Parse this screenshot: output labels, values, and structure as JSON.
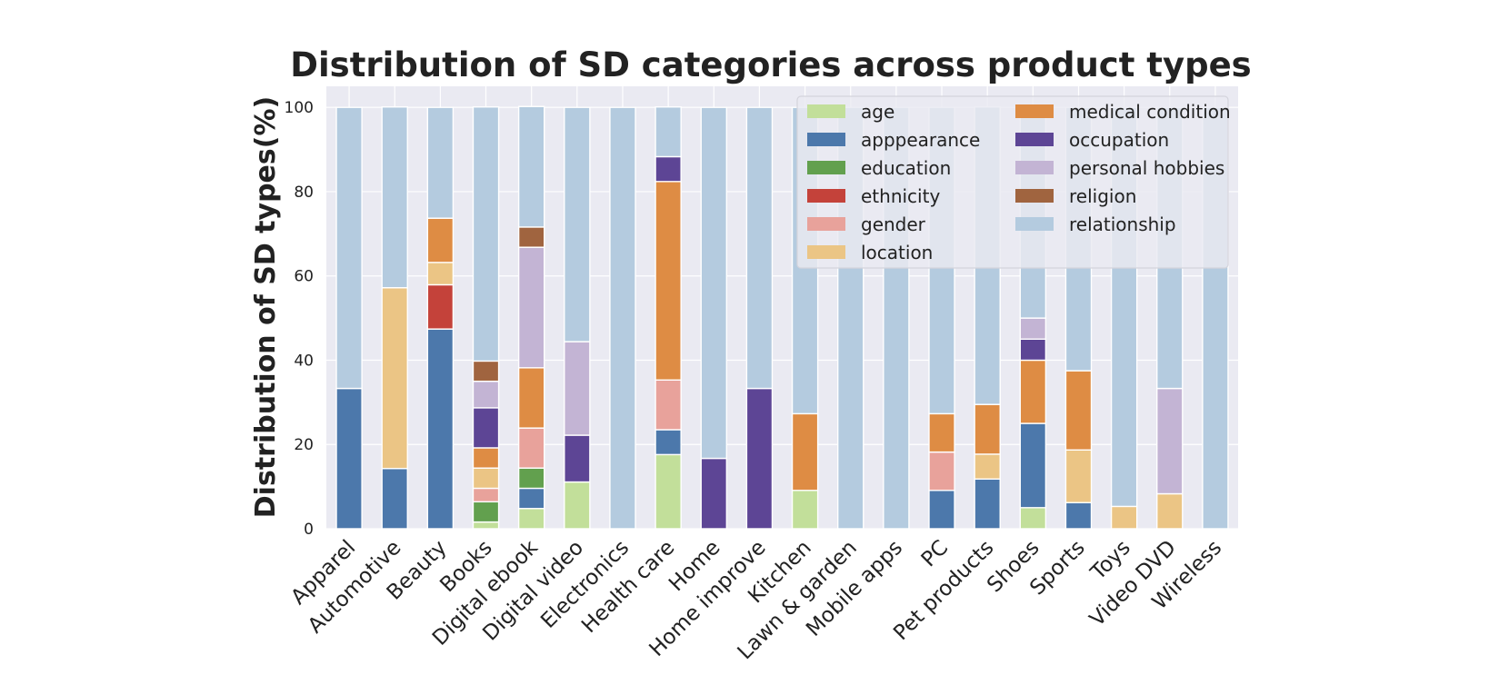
{
  "chart_data": {
    "type": "bar",
    "stacked": true,
    "title": "Distribution of SD categories across product types",
    "xlabel": "",
    "ylabel": "Distribution of SD types(%)",
    "ylim": [
      0,
      105
    ],
    "yticks": [
      0,
      20,
      40,
      60,
      80,
      100
    ],
    "grid": true,
    "legend_position": "top-right",
    "categories": [
      "Apparel",
      "Automotive",
      "Beauty",
      "Books",
      "Digital ebook",
      "Digital video",
      "Electronics",
      "Health care",
      "Home",
      "Home improve",
      "Kitchen",
      "Lawn & garden",
      "Mobile apps",
      "PC",
      "Pet products",
      "Shoes",
      "Sports",
      "Toys",
      "Video DVD",
      "Wireless"
    ],
    "series": [
      {
        "name": "age",
        "color": "#c2df9a",
        "values": [
          0,
          0,
          0,
          1.6,
          4.8,
          11.1,
          0,
          17.6,
          0,
          0,
          9.1,
          0,
          0,
          0,
          0,
          5.0,
          0,
          0,
          0,
          0
        ]
      },
      {
        "name": "apppearance",
        "color": "#4c78ab",
        "values": [
          33.3,
          14.3,
          47.4,
          0,
          4.8,
          0,
          0,
          5.9,
          0,
          0,
          0,
          0,
          0,
          9.1,
          11.8,
          20.0,
          6.2,
          0,
          0,
          0
        ]
      },
      {
        "name": "education",
        "color": "#62a04e",
        "values": [
          0,
          0,
          0,
          4.8,
          4.8,
          0,
          0,
          0,
          0,
          0,
          0,
          0,
          0,
          0,
          0,
          0,
          0,
          0,
          0,
          0
        ]
      },
      {
        "name": "ethnicity",
        "color": "#c4423a",
        "values": [
          0,
          0,
          10.5,
          0,
          0,
          0,
          0,
          0,
          0,
          0,
          0,
          0,
          0,
          0,
          0,
          0,
          0,
          0,
          0,
          0
        ]
      },
      {
        "name": "gender",
        "color": "#e8a29b",
        "values": [
          0,
          0,
          0,
          3.2,
          9.5,
          0,
          0,
          11.8,
          0,
          0,
          0,
          0,
          0,
          9.1,
          0,
          0,
          0,
          0,
          0,
          0
        ]
      },
      {
        "name": "location",
        "color": "#ebc585",
        "values": [
          0,
          42.9,
          5.3,
          4.8,
          0,
          0,
          0,
          0,
          0,
          0,
          0,
          0,
          0,
          0,
          5.9,
          0,
          12.5,
          5.3,
          8.3,
          0
        ]
      },
      {
        "name": "medical condition",
        "color": "#de8c44",
        "values": [
          0,
          0,
          10.5,
          4.8,
          14.3,
          0,
          0,
          47.1,
          0,
          0,
          18.2,
          0,
          0,
          9.1,
          11.8,
          15.0,
          18.8,
          0,
          0,
          0
        ]
      },
      {
        "name": "occupation",
        "color": "#5d4595",
        "values": [
          0,
          0,
          0,
          9.5,
          0,
          11.1,
          0,
          5.9,
          16.7,
          33.3,
          0,
          0,
          0,
          0,
          0,
          5.0,
          0,
          0,
          0,
          0
        ]
      },
      {
        "name": "personal hobbies",
        "color": "#c3b4d4",
        "values": [
          0,
          0,
          0,
          6.3,
          28.6,
          22.2,
          0,
          0,
          0,
          0,
          0,
          0,
          0,
          0,
          0,
          5.0,
          0,
          0,
          25.0,
          0
        ]
      },
      {
        "name": "religion",
        "color": "#a0643f",
        "values": [
          0,
          0,
          0,
          4.8,
          4.8,
          0,
          0,
          0,
          0,
          0,
          0,
          0,
          0,
          0,
          0,
          0,
          0,
          0,
          0,
          0
        ]
      },
      {
        "name": "relationship",
        "color": "#b4cbdf",
        "values": [
          66.7,
          42.9,
          26.3,
          60.3,
          28.6,
          55.6,
          100,
          11.8,
          83.3,
          66.7,
          72.7,
          100,
          100,
          72.7,
          70.6,
          50.0,
          62.5,
          94.7,
          66.7,
          100
        ]
      }
    ]
  }
}
